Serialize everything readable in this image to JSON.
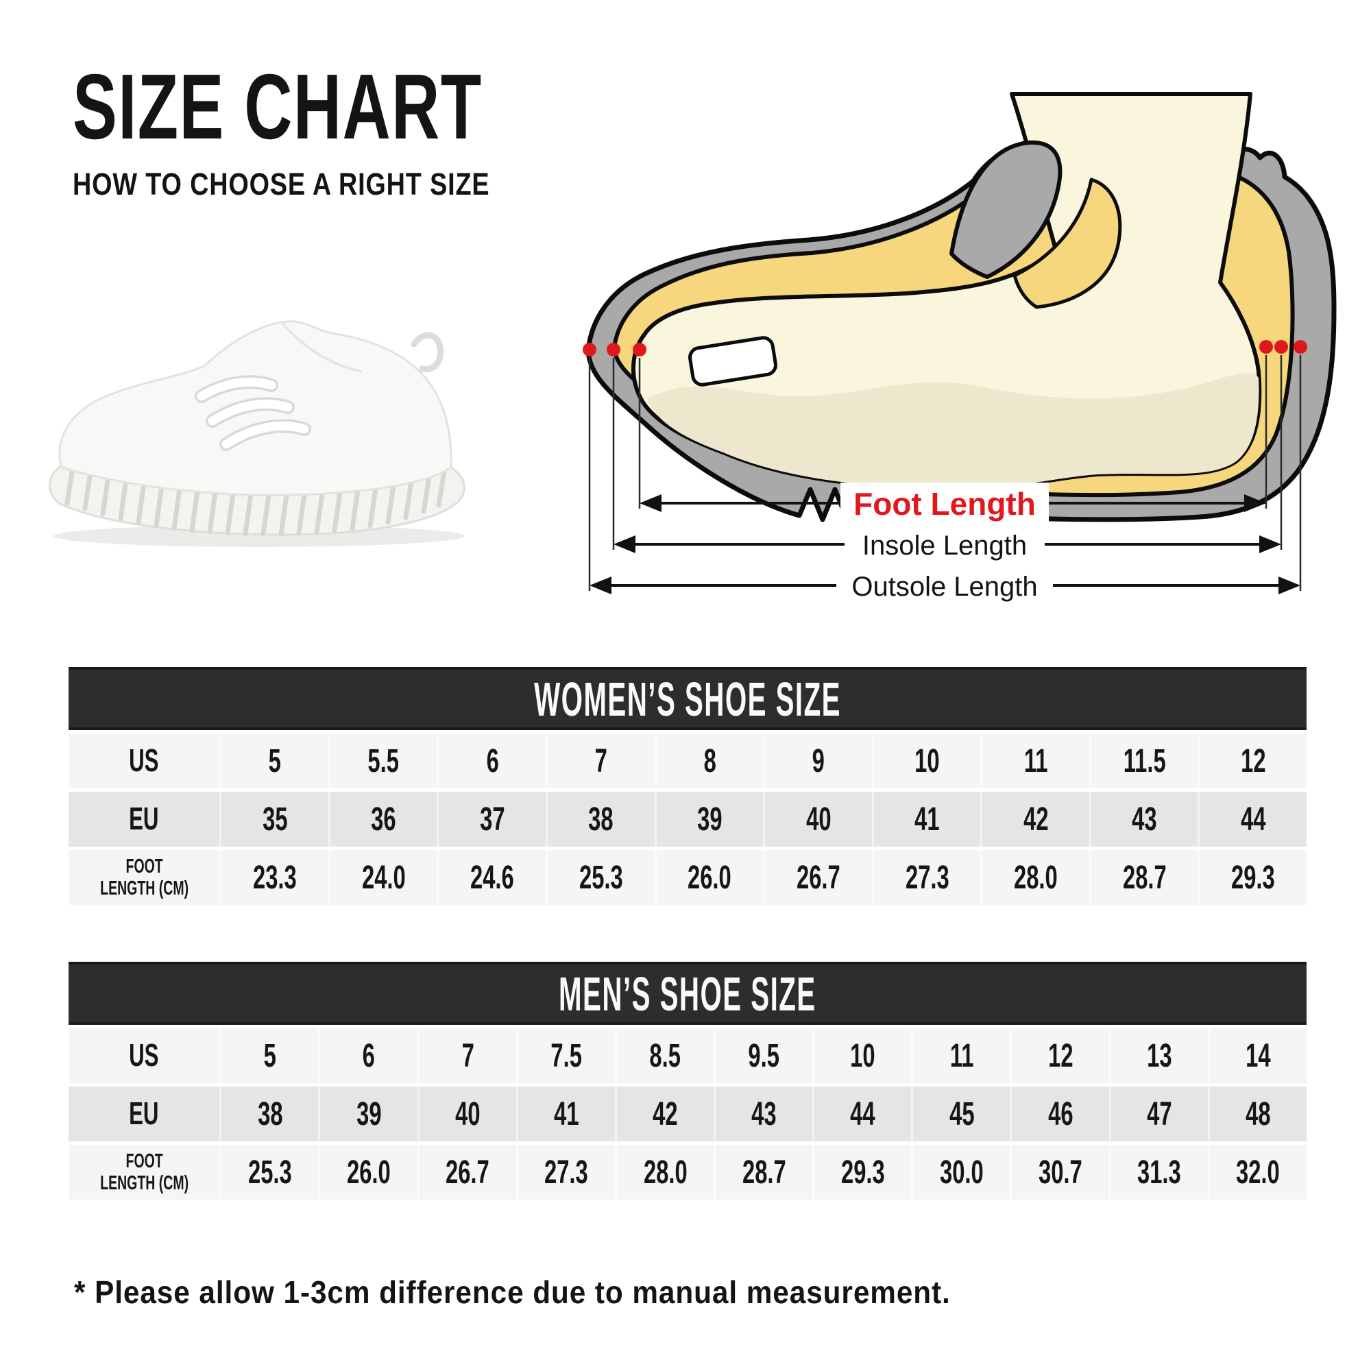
{
  "page": {
    "title": "SIZE CHART",
    "subtitle": "HOW TO CHOOSE A RIGHT SIZE",
    "footnote": "* Please allow 1-3cm difference due to manual measurement."
  },
  "diagram": {
    "foot_length_label": "Foot Length",
    "insole_length_label": "Insole Length",
    "outsole_length_label": "Outsole Length",
    "colors": {
      "accent_red": "#e0181e",
      "sole_gray": "#a9a9a9",
      "insole_yellow": "#f6d77e",
      "foot_cream": "#faf5dd",
      "outline": "#0c0c0c"
    }
  },
  "chart_data": [
    {
      "type": "table",
      "title": "WOMEN’S SHOE SIZE",
      "rows": [
        {
          "label": "US",
          "values": [
            "5",
            "5.5",
            "6",
            "7",
            "8",
            "9",
            "10",
            "11",
            "11.5",
            "12"
          ]
        },
        {
          "label": "EU",
          "values": [
            "35",
            "36",
            "37",
            "38",
            "39",
            "40",
            "41",
            "42",
            "43",
            "44"
          ]
        },
        {
          "label": "FOOT\nLENGTH (CM)",
          "values": [
            "23.3",
            "24.0",
            "24.6",
            "25.3",
            "26.0",
            "26.7",
            "27.3",
            "28.0",
            "28.7",
            "29.3"
          ]
        }
      ]
    },
    {
      "type": "table",
      "title": "MEN’S SHOE SIZE",
      "rows": [
        {
          "label": "US",
          "values": [
            "5",
            "6",
            "7",
            "7.5",
            "8.5",
            "9.5",
            "10",
            "11",
            "12",
            "13",
            "14"
          ]
        },
        {
          "label": "EU",
          "values": [
            "38",
            "39",
            "40",
            "41",
            "42",
            "43",
            "44",
            "45",
            "46",
            "47",
            "48"
          ]
        },
        {
          "label": "FOOT\nLENGTH (CM)",
          "values": [
            "25.3",
            "26.0",
            "26.7",
            "27.3",
            "28.0",
            "28.7",
            "29.3",
            "30.0",
            "30.7",
            "31.3",
            "32.0"
          ]
        }
      ]
    }
  ]
}
